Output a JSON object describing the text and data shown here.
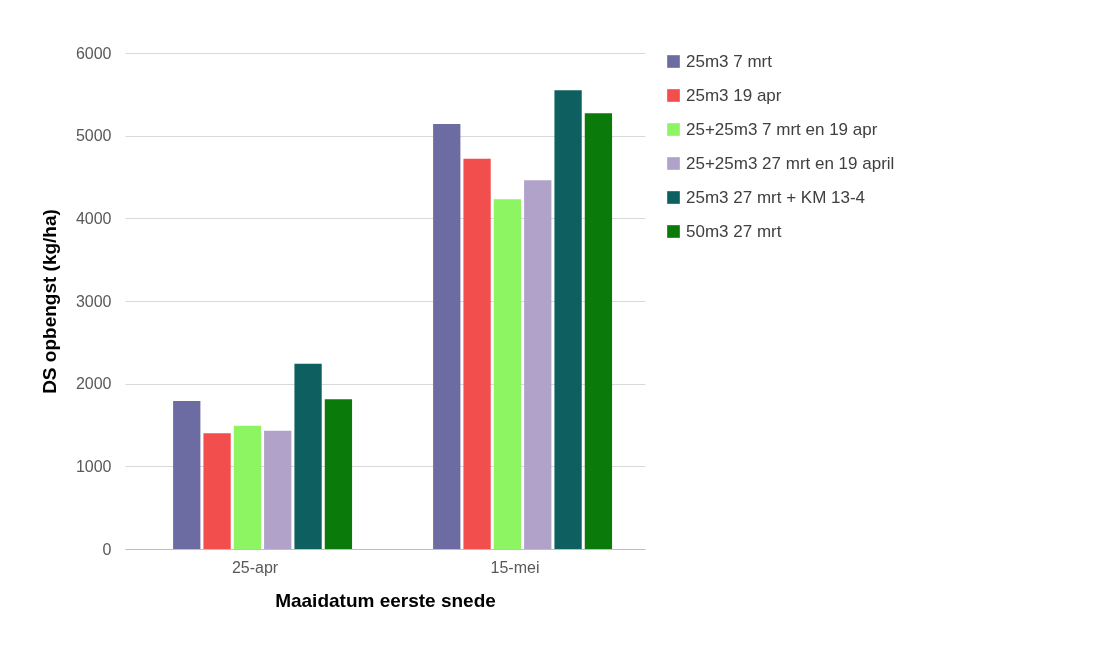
{
  "chart_data": {
    "type": "bar",
    "xlabel": "Maaidatum eerste snede",
    "ylabel": "DS opbengst (kg/ha)",
    "categories": [
      "25-apr",
      "15-mei"
    ],
    "series": [
      {
        "name": "25m3  7 mrt",
        "color": "#6c6ca3",
        "values": [
          1790,
          5140
        ]
      },
      {
        "name": "25m3  19 apr",
        "color": "#f24e4e",
        "values": [
          1400,
          4720
        ]
      },
      {
        "name": "25+25m3 7 mrt en 19 apr",
        "color": "#8ef562",
        "values": [
          1490,
          4230
        ]
      },
      {
        "name": "25+25m3  27 mrt en 19 april",
        "color": "#b0a2c8",
        "values": [
          1430,
          4460
        ]
      },
      {
        "name": "25m3  27 mrt + KM 13-4",
        "color": "#0e6060",
        "values": [
          2240,
          5550
        ]
      },
      {
        "name": "50m3  27 mrt",
        "color": "#0a7a0a",
        "values": [
          1810,
          5270
        ]
      }
    ],
    "ylim": [
      0,
      6000
    ],
    "yticks": [
      0,
      1000,
      2000,
      3000,
      4000,
      5000,
      6000
    ],
    "grid": "y",
    "legend": "right"
  }
}
